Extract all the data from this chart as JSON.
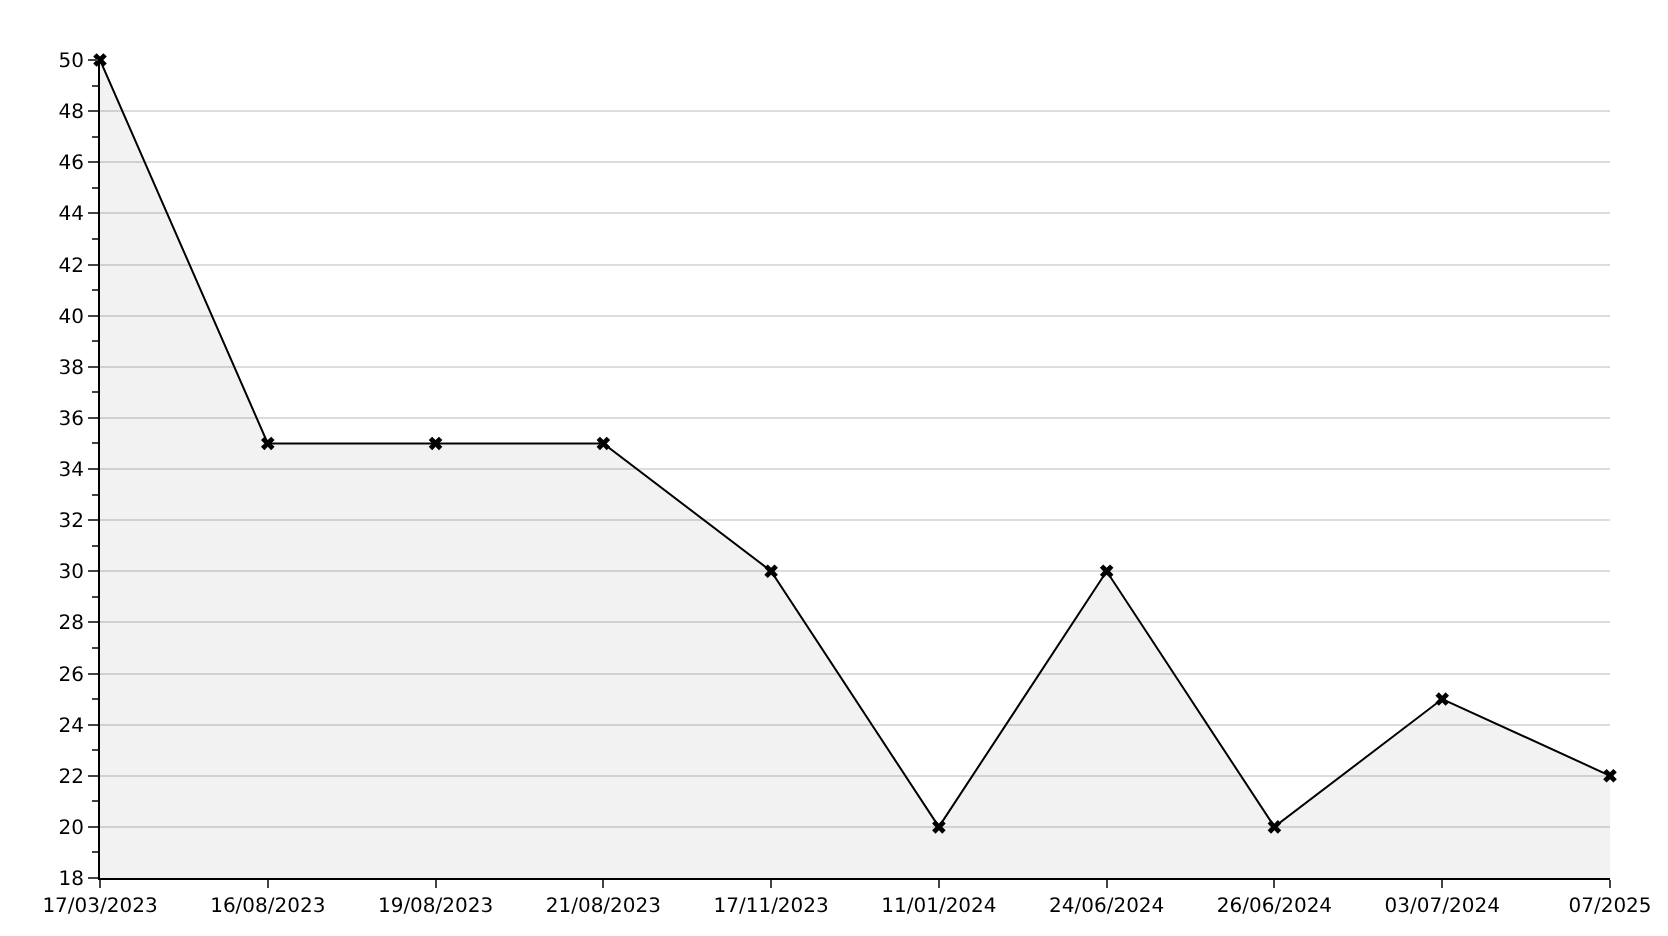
{
  "chart_data": {
    "type": "area",
    "categories": [
      "17/03/2023",
      "16/08/2023",
      "19/08/2023",
      "21/08/2023",
      "17/11/2023",
      "11/01/2024",
      "24/06/2024",
      "26/06/2024",
      "03/07/2024",
      "07/2025"
    ],
    "series": [
      {
        "color": "#000000",
        "values": [
          50,
          35,
          35,
          35,
          30,
          20,
          30,
          20,
          25,
          22
        ]
      }
    ],
    "ylim": [
      18,
      50
    ],
    "yticks": [
      18,
      20,
      22,
      24,
      26,
      28,
      30,
      32,
      34,
      36,
      38,
      40,
      42,
      44,
      46,
      48,
      50
    ],
    "grid": "y",
    "marker": "cross",
    "line_style": "solid"
  }
}
